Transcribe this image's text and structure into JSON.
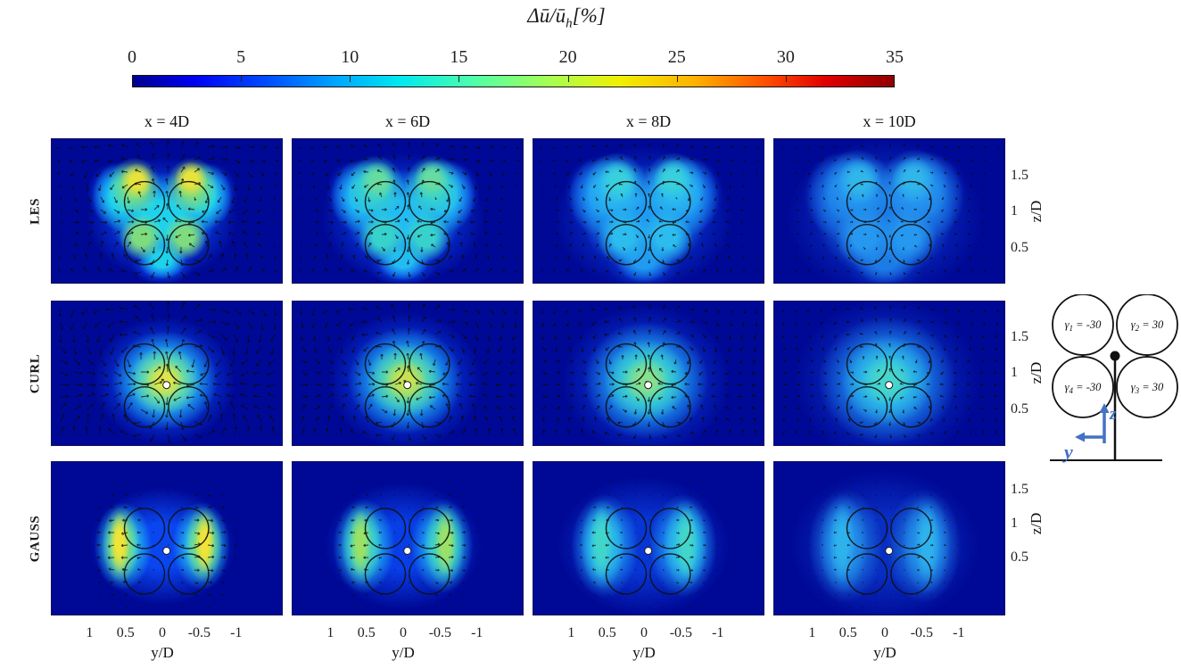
{
  "colorbar": {
    "title_main": "Δū/ū",
    "title_sub": "h",
    "title_unit": "[%]",
    "ticks": [
      "0",
      "5",
      "10",
      "15",
      "20",
      "25",
      "30",
      "35"
    ],
    "min": 0,
    "max": 35,
    "colormap": "jet",
    "gradient": [
      [
        "#00008f",
        0
      ],
      [
        "#0000f2",
        8
      ],
      [
        "#0050ff",
        18
      ],
      [
        "#00a8ff",
        27
      ],
      [
        "#00e8f0",
        35
      ],
      [
        "#50ffa8",
        45
      ],
      [
        "#a8ff50",
        55
      ],
      [
        "#f0f000",
        64
      ],
      [
        "#ffb000",
        74
      ],
      [
        "#ff5000",
        83
      ],
      [
        "#e00000",
        91
      ],
      [
        "#8f0000",
        100
      ]
    ]
  },
  "columns": [
    {
      "label": "x = 4D"
    },
    {
      "label": "x = 6D"
    },
    {
      "label": "x = 8D"
    },
    {
      "label": "x = 10D"
    }
  ],
  "rows": [
    {
      "label": "LES"
    },
    {
      "label": "CURL"
    },
    {
      "label": "GAUSS"
    }
  ],
  "axes": {
    "x_label": "y/D",
    "x_ticks": [
      "1",
      "0.5",
      "0",
      "-0.5",
      "-1"
    ],
    "z_label": "z/D",
    "z_ticks": [
      "1.5",
      "1",
      "0.5"
    ]
  },
  "panels": [
    {
      "row": "LES",
      "col": "x = 4D",
      "pattern": "butterfly",
      "hub_dot": false,
      "peak_pct": 31,
      "palette": {
        "hot": "#e9e23b",
        "mid": "#7edc7e",
        "cyan": "#1fd2ec",
        "halo": "#0a46f0",
        "bg": "#000996"
      }
    },
    {
      "row": "LES",
      "col": "x = 6D",
      "pattern": "butterfly",
      "hub_dot": false,
      "peak_pct": 20,
      "palette": {
        "hot": "#66dca0",
        "mid": "#38d2cc",
        "cyan": "#22bcf2",
        "halo": "#083ee6",
        "bg": "#000996"
      }
    },
    {
      "row": "LES",
      "col": "x = 8D",
      "pattern": "butterfly",
      "hub_dot": false,
      "peak_pct": 14,
      "palette": {
        "hot": "#38d0dc",
        "mid": "#2cbcee",
        "cyan": "#1f9cf2",
        "halo": "#0836d4",
        "bg": "#000996"
      }
    },
    {
      "row": "LES",
      "col": "x = 10D",
      "pattern": "butterfly",
      "hub_dot": false,
      "peak_pct": 10,
      "palette": {
        "hot": "#30b6ea",
        "mid": "#2698f0",
        "cyan": "#1c7ce6",
        "halo": "#082ec2",
        "bg": "#000996"
      }
    },
    {
      "row": "CURL",
      "col": "x = 4D",
      "pattern": "center",
      "hub_dot": true,
      "peak_pct": 29,
      "palette": {
        "hot": "#dce64a",
        "mid": "#80e08c",
        "cyan": "#28ccec",
        "halo": "#0a46f0",
        "bg": "#000996"
      }
    },
    {
      "row": "CURL",
      "col": "x = 6D",
      "pattern": "center",
      "hub_dot": true,
      "peak_pct": 25,
      "palette": {
        "hot": "#c6e252",
        "mid": "#66da9a",
        "cyan": "#24c2ee",
        "halo": "#083ee6",
        "bg": "#000996"
      }
    },
    {
      "row": "CURL",
      "col": "x = 8D",
      "pattern": "center",
      "hub_dot": true,
      "peak_pct": 20,
      "palette": {
        "hot": "#86e08e",
        "mid": "#40d2c6",
        "cyan": "#24b0f0",
        "halo": "#0836d4",
        "bg": "#000996"
      }
    },
    {
      "row": "CURL",
      "col": "x = 10D",
      "pattern": "center",
      "hub_dot": true,
      "peak_pct": 16,
      "palette": {
        "hot": "#46d6cc",
        "mid": "#30c0e2",
        "cyan": "#2092ee",
        "halo": "#082ec2",
        "bg": "#000996"
      }
    },
    {
      "row": "GAUSS",
      "col": "x = 4D",
      "pattern": "sidelobes",
      "hub_dot": true,
      "peak_pct": 32,
      "palette": {
        "hot": "#f0e438",
        "mid": "#8ade74",
        "cyan": "#28ccec",
        "halo": "#0a46f0",
        "bg": "#000996"
      }
    },
    {
      "row": "GAUSS",
      "col": "x = 6D",
      "pattern": "sidelobes",
      "hub_dot": true,
      "peak_pct": 23,
      "palette": {
        "hot": "#9ae266",
        "mid": "#4cd6b2",
        "cyan": "#24baee",
        "halo": "#083ee6",
        "bg": "#000996"
      }
    },
    {
      "row": "GAUSS",
      "col": "x = 8D",
      "pattern": "sidelobes",
      "hub_dot": true,
      "peak_pct": 16,
      "palette": {
        "hot": "#42d6ca",
        "mid": "#2ec0e4",
        "cyan": "#209cf0",
        "halo": "#0836d4",
        "bg": "#000996"
      }
    },
    {
      "row": "GAUSS",
      "col": "x = 10D",
      "pattern": "sidelobes",
      "hub_dot": true,
      "peak_pct": 11,
      "palette": {
        "hot": "#2eb2ec",
        "mid": "#2492ea",
        "cyan": "#1c74dc",
        "halo": "#082ec2",
        "bg": "#000996"
      }
    }
  ],
  "diagram": {
    "rotors": [
      {
        "pos": "top-left",
        "sym": "γ",
        "sub": "1",
        "value": " = -30"
      },
      {
        "pos": "top-right",
        "sym": "γ",
        "sub": "2",
        "value": " = 30"
      },
      {
        "pos": "bottom-left",
        "sym": "γ",
        "sub": "4",
        "value": " = -30"
      },
      {
        "pos": "bottom-right",
        "sym": "γ",
        "sub": "3",
        "value": " = 30"
      }
    ],
    "axes": {
      "horizontal_label": "y",
      "vertical_label": "z",
      "color": "#4472c4"
    }
  },
  "chart_data": {
    "type": "heatmap",
    "title": "Δū/ūₕ [%]",
    "subtitle": "Streamwise velocity-deficit cross-sections of a four-rotor turbine wake: LES vs CURL vs GAUSS models at downstream stations",
    "colorbar": {
      "label": "Δū/ūₕ [%]",
      "min": 0,
      "max": 35,
      "ticks": [
        0,
        5,
        10,
        15,
        20,
        25,
        30,
        35
      ],
      "colormap": "jet",
      "orientation": "horizontal",
      "position": "top"
    },
    "columns": [
      "x = 4D",
      "x = 6D",
      "x = 8D",
      "x = 10D"
    ],
    "rows": [
      "LES",
      "CURL",
      "GAUSS"
    ],
    "x_axis": {
      "label": "y/D",
      "ticks": [
        1,
        0.5,
        0,
        -0.5,
        -1
      ],
      "reversed": true
    },
    "y_axis": {
      "label": "z/D",
      "ticks": [
        1.5,
        1,
        0.5
      ],
      "side": "right"
    },
    "panel_peak_deficit_pct": {
      "LES": [
        31,
        20,
        14,
        10
      ],
      "CURL": [
        29,
        25,
        20,
        16
      ],
      "GAUSS": [
        32,
        23,
        16,
        11
      ]
    },
    "panel_patterns": {
      "LES": "four-lobed butterfly deficit around the rotor circles, strongest in upper outboard lobes, fading and diffusing downstream",
      "CURL": "single central deficit blob with strong swirling in-plane vectors around the four rotor circles, white hub marker",
      "GAUSS": "two tall lateral deficit lobes outboard of the rotor circles with mostly horizontal in-plane vectors, white hub marker"
    },
    "overlays": "four rotor outline circles per panel, in-plane velocity quiver arrows, white hub marker on CURL and GAUSS rows",
    "legend_inset": "four-rotor schematic with yaw angles γ1 = -30, γ2 = 30, γ3 = 30, γ4 = -30 and blue y-z axes at tower base"
  }
}
